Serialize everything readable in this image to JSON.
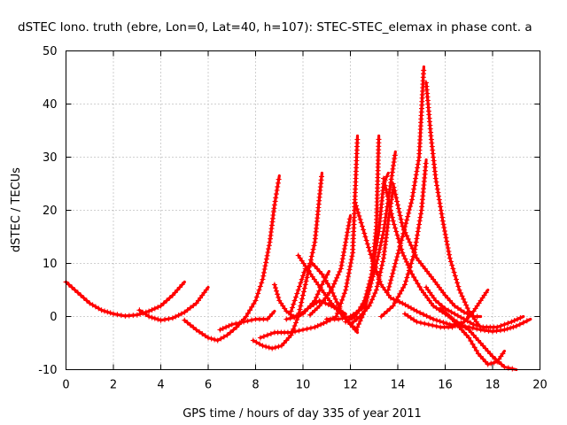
{
  "chart_data": {
    "type": "scatter",
    "title": "dSTEC Iono. truth (ebre, Lon=0, Lat=40, h=107): STEC-STEC_elemax in phase cont. a",
    "xlabel": "GPS time / hours of day 335 of year 2011",
    "ylabel": "dSTEC  / TECUs",
    "xlim": [
      0,
      20
    ],
    "ylim": [
      -10,
      50
    ],
    "xticks": [
      0,
      2,
      4,
      6,
      8,
      10,
      12,
      14,
      16,
      18,
      20
    ],
    "yticks": [
      -10,
      0,
      10,
      20,
      30,
      40,
      50
    ],
    "grid": true,
    "marker": "plus",
    "color": "#ff0000",
    "series": [
      {
        "points": [
          [
            0,
            6.5
          ],
          [
            0.5,
            4.5
          ],
          [
            1,
            2.5
          ],
          [
            1.5,
            1.2
          ],
          [
            2,
            0.5
          ],
          [
            2.5,
            0.1
          ],
          [
            3,
            0.3
          ],
          [
            3.5,
            1
          ],
          [
            4,
            2
          ],
          [
            4.5,
            4
          ],
          [
            5,
            6.5
          ]
        ]
      },
      {
        "points": [
          [
            3.1,
            1.2
          ],
          [
            3.5,
            0
          ],
          [
            4,
            -0.7
          ],
          [
            4.5,
            -0.3
          ],
          [
            5,
            0.8
          ],
          [
            5.5,
            2.5
          ],
          [
            6,
            5.5
          ]
        ]
      },
      {
        "points": [
          [
            5,
            -0.7
          ],
          [
            5.5,
            -2.5
          ],
          [
            6,
            -4
          ],
          [
            6.4,
            -4.5
          ],
          [
            6.8,
            -3.5
          ],
          [
            7.2,
            -2
          ],
          [
            7.6,
            0
          ],
          [
            8,
            3
          ],
          [
            8.3,
            7
          ],
          [
            8.6,
            14
          ],
          [
            8.8,
            21
          ],
          [
            9,
            26.5
          ]
        ]
      },
      {
        "points": [
          [
            6.5,
            -2.5
          ],
          [
            7,
            -1.5
          ],
          [
            7.5,
            -1
          ],
          [
            8,
            -0.5
          ],
          [
            8.5,
            -0.5
          ],
          [
            8.8,
            1
          ]
        ]
      },
      {
        "points": [
          [
            8.8,
            6
          ],
          [
            9,
            3
          ],
          [
            9.3,
            1
          ],
          [
            9.6,
            0
          ],
          [
            10,
            0.5
          ],
          [
            10.5,
            3
          ],
          [
            10.8,
            6
          ],
          [
            11.1,
            8.5
          ]
        ]
      },
      {
        "points": [
          [
            7.9,
            -4.5
          ],
          [
            8.3,
            -5.5
          ],
          [
            8.7,
            -6
          ],
          [
            9.1,
            -5.5
          ],
          [
            9.5,
            -3.5
          ],
          [
            9.8,
            0
          ],
          [
            10,
            4
          ],
          [
            10.2,
            8
          ],
          [
            10.5,
            14
          ],
          [
            10.8,
            27
          ]
        ]
      },
      {
        "points": [
          [
            8.2,
            -4
          ],
          [
            8.8,
            -3
          ],
          [
            9.5,
            -3
          ],
          [
            10,
            -2.5
          ],
          [
            10.5,
            -2
          ],
          [
            11,
            -1
          ],
          [
            11.4,
            0
          ],
          [
            11.8,
            5
          ],
          [
            12.1,
            12
          ],
          [
            12.3,
            34
          ]
        ]
      },
      {
        "points": [
          [
            9.3,
            -0.5
          ],
          [
            9.8,
            0
          ],
          [
            10.2,
            1.5
          ],
          [
            10.7,
            3
          ],
          [
            11.2,
            2
          ],
          [
            11.8,
            0.5
          ]
        ]
      },
      {
        "points": [
          [
            9.5,
            1
          ],
          [
            9.8,
            5
          ],
          [
            10.1,
            9
          ],
          [
            10.4,
            10
          ],
          [
            10.8,
            8
          ],
          [
            11.2,
            5
          ],
          [
            11.6,
            1
          ],
          [
            12,
            -1.5
          ],
          [
            12.3,
            -2.5
          ]
        ]
      },
      {
        "points": [
          [
            9.8,
            11.5
          ],
          [
            10.1,
            9.5
          ],
          [
            10.4,
            7.5
          ],
          [
            10.8,
            5
          ],
          [
            11.2,
            2.5
          ],
          [
            11.6,
            0.5
          ],
          [
            12,
            -1.5
          ],
          [
            12.3,
            -3
          ]
        ]
      },
      {
        "points": [
          [
            10.3,
            0.3
          ],
          [
            10.7,
            2
          ],
          [
            11.2,
            5
          ],
          [
            11.6,
            9
          ],
          [
            11.8,
            14
          ],
          [
            12,
            19
          ]
        ]
      },
      {
        "points": [
          [
            11,
            -0.5
          ],
          [
            11.5,
            -0.5
          ],
          [
            12,
            0
          ],
          [
            12.5,
            1.5
          ],
          [
            12.8,
            5
          ],
          [
            13.1,
            10
          ],
          [
            13.4,
            16
          ],
          [
            13.6,
            22
          ],
          [
            13.9,
            31
          ]
        ]
      },
      {
        "points": [
          [
            11.8,
            -1
          ],
          [
            12.2,
            0
          ],
          [
            12.6,
            3
          ],
          [
            12.9,
            8
          ],
          [
            13.2,
            16
          ],
          [
            13.4,
            25
          ],
          [
            13.6,
            27
          ]
        ]
      },
      {
        "points": [
          [
            12,
            -1.5
          ],
          [
            12.4,
            0
          ],
          [
            12.8,
            2
          ],
          [
            13.1,
            5
          ],
          [
            13.4,
            11
          ],
          [
            13.6,
            18
          ],
          [
            13.8,
            24
          ]
        ]
      },
      {
        "points": [
          [
            12.2,
            21.5
          ],
          [
            12.5,
            17
          ],
          [
            12.9,
            11
          ],
          [
            13.3,
            6
          ],
          [
            13.7,
            3.5
          ],
          [
            14.2,
            2.5
          ],
          [
            14.8,
            1
          ],
          [
            15.5,
            -0.5
          ],
          [
            16.2,
            -1.5
          ],
          [
            17,
            -2
          ],
          [
            17.5,
            -2.5
          ],
          [
            18,
            -2.8
          ],
          [
            18.5,
            -2.5
          ],
          [
            19,
            -1.8
          ],
          [
            19.6,
            -0.5
          ]
        ]
      },
      {
        "points": [
          [
            12.3,
            -2
          ],
          [
            12.6,
            1
          ],
          [
            12.9,
            8
          ],
          [
            13.1,
            17
          ],
          [
            13.2,
            34
          ]
        ]
      },
      {
        "points": [
          [
            13.4,
            26
          ],
          [
            13.8,
            18
          ],
          [
            14.2,
            12
          ],
          [
            14.6,
            8
          ],
          [
            15,
            5
          ],
          [
            15.5,
            2
          ],
          [
            16,
            0.5
          ],
          [
            16.5,
            -1
          ],
          [
            17,
            -2.5
          ],
          [
            17.5,
            -5
          ],
          [
            18,
            -7.5
          ],
          [
            18.5,
            -9.5
          ],
          [
            19,
            -10
          ]
        ]
      },
      {
        "points": [
          [
            13.3,
            0
          ],
          [
            13.8,
            2
          ],
          [
            14.3,
            6
          ],
          [
            14.7,
            12
          ],
          [
            15,
            20
          ],
          [
            15.2,
            29.5
          ]
        ]
      },
      {
        "points": [
          [
            13.6,
            5
          ],
          [
            13.9,
            10
          ],
          [
            14.2,
            15
          ],
          [
            14.6,
            22
          ],
          [
            14.9,
            30
          ],
          [
            15.1,
            47
          ]
        ]
      },
      {
        "points": [
          [
            13.8,
            25
          ],
          [
            14.2,
            17
          ],
          [
            14.8,
            11
          ],
          [
            15.5,
            7
          ],
          [
            16,
            4
          ],
          [
            16.4,
            2
          ],
          [
            16.8,
            0.8
          ],
          [
            17.2,
            0
          ],
          [
            17.5,
            0
          ]
        ]
      },
      {
        "points": [
          [
            14.3,
            0.5
          ],
          [
            14.8,
            -1
          ],
          [
            15.3,
            -1.5
          ],
          [
            15.8,
            -2
          ],
          [
            16.3,
            -2
          ],
          [
            16.8,
            -1
          ],
          [
            17.2,
            1
          ],
          [
            17.5,
            3
          ],
          [
            17.8,
            5
          ]
        ]
      },
      {
        "points": [
          [
            15.2,
            44
          ],
          [
            15.4,
            34
          ],
          [
            15.6,
            26
          ],
          [
            15.9,
            18
          ],
          [
            16.2,
            11
          ],
          [
            16.6,
            5
          ],
          [
            17,
            1
          ],
          [
            17.4,
            -1.5
          ]
        ]
      },
      {
        "points": [
          [
            15.2,
            5.5
          ],
          [
            15.6,
            3
          ],
          [
            16,
            1.5
          ],
          [
            16.4,
            0.5
          ],
          [
            16.8,
            -0.5
          ],
          [
            17.2,
            -1.5
          ],
          [
            17.6,
            -2
          ],
          [
            18.2,
            -2
          ],
          [
            18.8,
            -1
          ],
          [
            19.3,
            0
          ]
        ]
      },
      {
        "points": [
          [
            15.8,
            1.5
          ],
          [
            16.2,
            0
          ],
          [
            16.6,
            -2
          ],
          [
            17,
            -4
          ],
          [
            17.4,
            -7
          ],
          [
            17.8,
            -9
          ],
          [
            18.2,
            -8.5
          ],
          [
            18.5,
            -6.5
          ]
        ]
      }
    ]
  }
}
